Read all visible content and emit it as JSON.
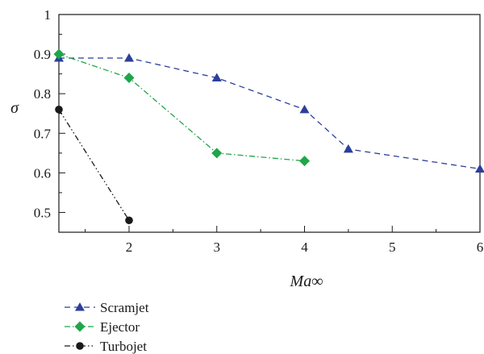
{
  "chart_data": {
    "type": "line",
    "xlabel": "Ma∞",
    "ylabel": "σ",
    "xlim": [
      1.2,
      6
    ],
    "ylim": [
      0.45,
      1.0
    ],
    "x_ticks": [
      2,
      3,
      4,
      5,
      6
    ],
    "y_ticks": [
      0.5,
      0.6,
      0.7,
      0.8,
      0.9,
      1
    ],
    "x_tick_labels": [
      "2",
      "3",
      "4",
      "5",
      "6"
    ],
    "y_tick_labels": [
      "0.5",
      "0.6",
      "0.7",
      "0.8",
      "0.9",
      "1"
    ],
    "legend_position": "bottom-left, below plot",
    "grid": false,
    "series": [
      {
        "name": "Scramjet",
        "color": "#2b3f9a",
        "marker": "triangle",
        "line_style": "dashed",
        "x": [
          1.2,
          2,
          3,
          4,
          4.5,
          6
        ],
        "y": [
          0.89,
          0.89,
          0.84,
          0.76,
          0.66,
          0.61
        ]
      },
      {
        "name": "Ejector",
        "color": "#1ea64a",
        "marker": "diamond",
        "line_style": "dash-dot",
        "x": [
          1.2,
          2,
          3,
          4
        ],
        "y": [
          0.9,
          0.84,
          0.65,
          0.63
        ]
      },
      {
        "name": "Turbojet",
        "color": "#1a1a1a",
        "marker": "circle",
        "line_style": "dash-dot-dot",
        "x": [
          1.2,
          2
        ],
        "y": [
          0.76,
          0.48
        ]
      }
    ]
  }
}
